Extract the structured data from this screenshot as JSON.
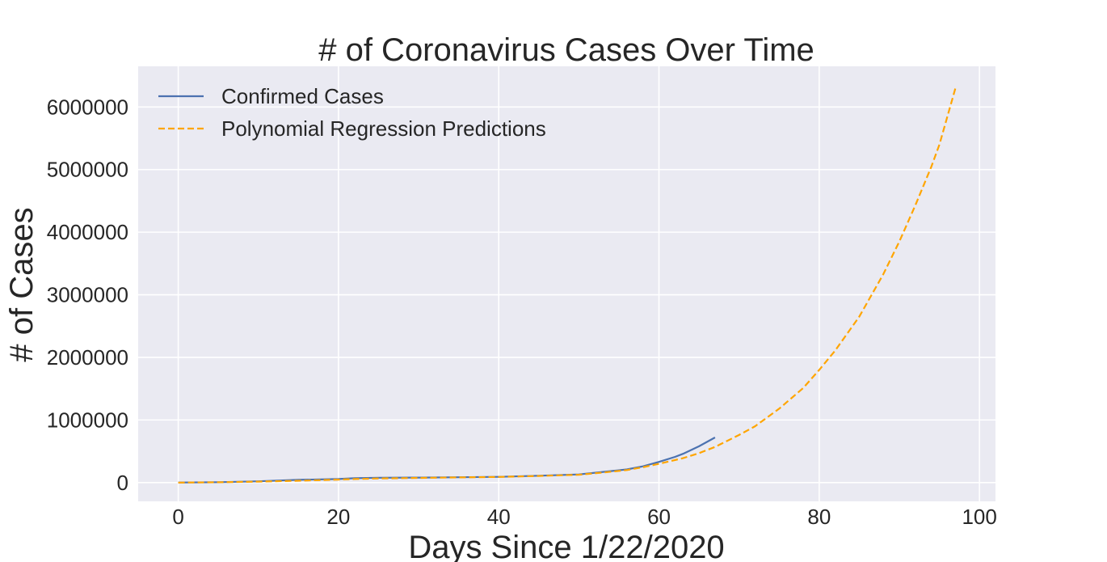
{
  "chart_data": {
    "type": "line",
    "title": "# of Coronavirus Cases Over Time",
    "xlabel": "Days Since 1/22/2020",
    "ylabel": "# of Cases",
    "xlim": [
      -5,
      102
    ],
    "ylim": [
      -300000,
      6650000
    ],
    "xticks": [
      0,
      20,
      40,
      60,
      80,
      100
    ],
    "yticks": [
      0,
      1000000,
      2000000,
      3000000,
      4000000,
      5000000,
      6000000
    ],
    "grid": true,
    "legend_position": "top-left",
    "series": [
      {
        "name": "Confirmed Cases",
        "color": "#4c72b0",
        "style": "solid",
        "x": [
          0,
          5,
          10,
          15,
          20,
          22,
          25,
          30,
          35,
          40,
          45,
          50,
          53,
          56,
          58,
          60,
          62,
          63,
          65,
          67
        ],
        "y": [
          550,
          6000,
          20000,
          43000,
          56000,
          70000,
          77000,
          80000,
          85000,
          92000,
          110000,
          130000,
          170000,
          210000,
          260000,
          330000,
          410000,
          460000,
          580000,
          720000
        ]
      },
      {
        "name": "Polynomial Regression Predictions",
        "color": "#ffa500",
        "style": "dashed",
        "x": [
          0,
          5,
          10,
          15,
          20,
          22,
          25,
          30,
          35,
          40,
          45,
          50,
          53,
          56,
          58,
          60,
          63,
          65,
          67,
          70,
          72,
          75,
          78,
          80,
          82,
          85,
          88,
          90,
          92,
          94,
          95,
          97
        ],
        "y": [
          0,
          5000,
          15000,
          30000,
          48000,
          56000,
          65000,
          75000,
          83000,
          90000,
          105000,
          125000,
          160000,
          200000,
          245000,
          300000,
          390000,
          470000,
          570000,
          760000,
          900000,
          1180000,
          1510000,
          1800000,
          2110000,
          2650000,
          3330000,
          3850000,
          4430000,
          5050000,
          5400000,
          6300000
        ]
      }
    ]
  }
}
